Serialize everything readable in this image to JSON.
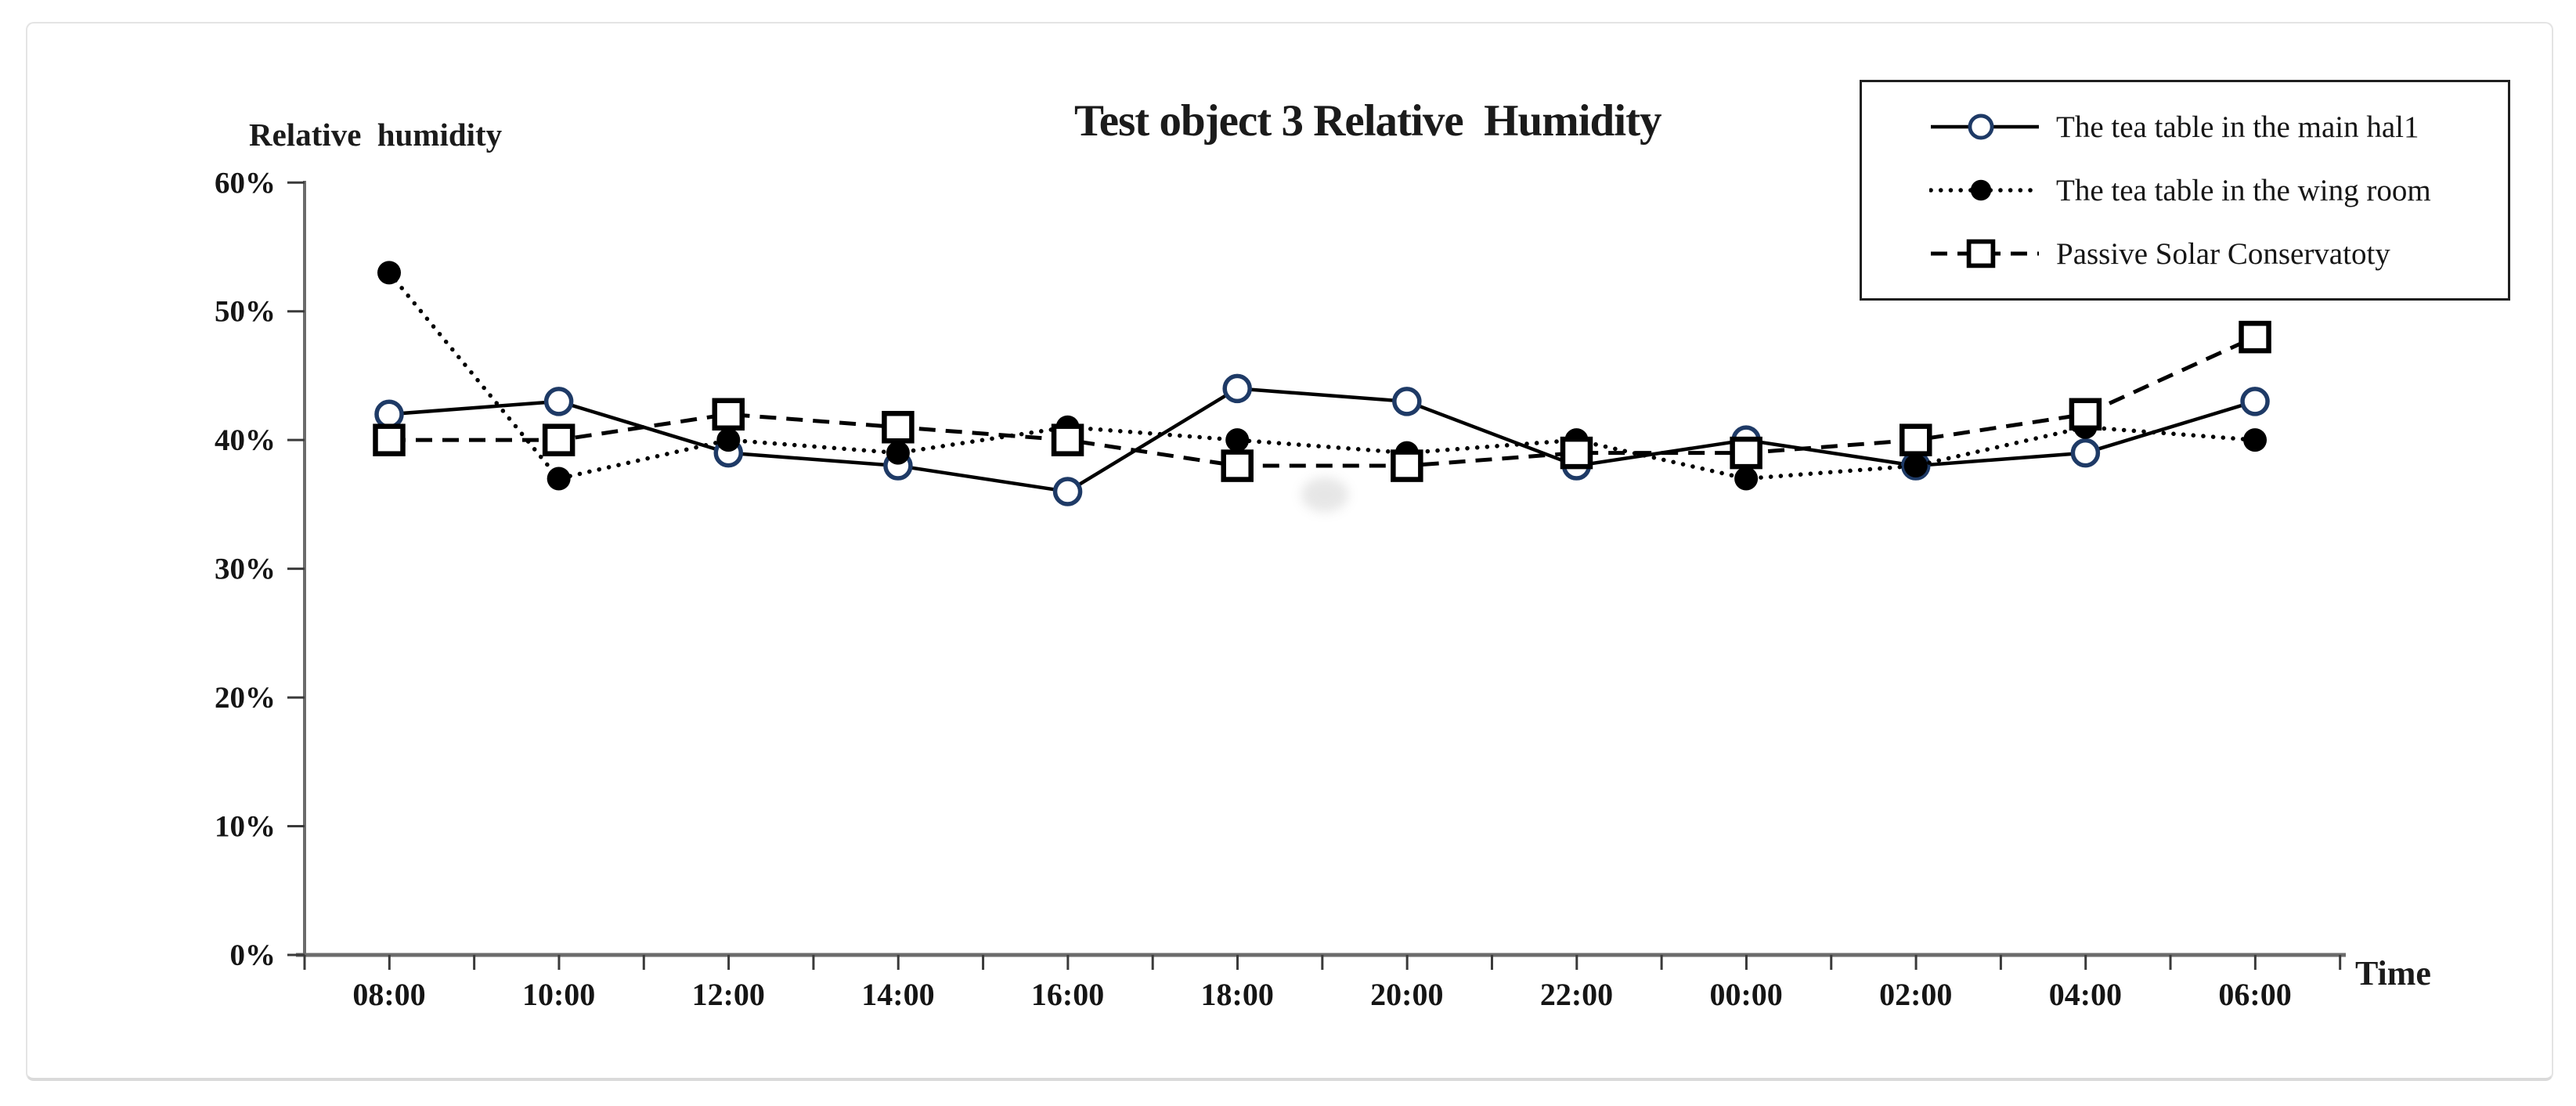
{
  "chart": {
    "title": "Test object 3 Relative  Humidity",
    "y_axis_title": "Relative humidity",
    "x_axis_title": "Time"
  },
  "legend": {
    "items": [
      {
        "label": "The tea table in the main hal1",
        "marker": "open-circle",
        "line": "solid"
      },
      {
        "label": "The tea table in the wing room",
        "marker": "filled-circle",
        "line": "dotted"
      },
      {
        "label": "Passive Solar Conservatoty",
        "marker": "open-square",
        "line": "dashed"
      }
    ]
  },
  "chart_data": {
    "type": "line",
    "title": "Test object 3 Relative  Humidity",
    "categories": [
      "08:00",
      "10:00",
      "12:00",
      "14:00",
      "16:00",
      "18:00",
      "20:00",
      "22:00",
      "00:00",
      "02:00",
      "04:00",
      "06:00"
    ],
    "series": [
      {
        "name": "The tea table in the main hal1",
        "line": "solid",
        "marker": "open-circle",
        "values": [
          42,
          43,
          39,
          38,
          36,
          44,
          43,
          38,
          40,
          38,
          39,
          43
        ]
      },
      {
        "name": "The tea table in the wing room",
        "line": "dotted",
        "marker": "filled-circle",
        "values": [
          53,
          37,
          40,
          39,
          41,
          40,
          39,
          40,
          37,
          38,
          41,
          40
        ]
      },
      {
        "name": "Passive Solar Conservatoty",
        "line": "dashed",
        "marker": "open-square",
        "values": [
          40,
          40,
          42,
          41,
          40,
          38,
          38,
          39,
          39,
          40,
          42,
          48
        ]
      }
    ],
    "xlabel": "Time",
    "ylabel": "Relative humidity",
    "ylim": [
      0,
      60
    ],
    "y_ticks": [
      0,
      10,
      20,
      30,
      40,
      50,
      60
    ],
    "y_tick_labels": [
      "0%",
      "10%",
      "20%",
      "30%",
      "40%",
      "50%",
      "60%"
    ],
    "grid": false,
    "legend_position": "top-right"
  },
  "colors": {
    "series_line": "#000000",
    "open_marker_ring": "#1e3a66",
    "axis": "#6b6b6b",
    "tick": "#3a3a3a",
    "text": "#151515"
  }
}
